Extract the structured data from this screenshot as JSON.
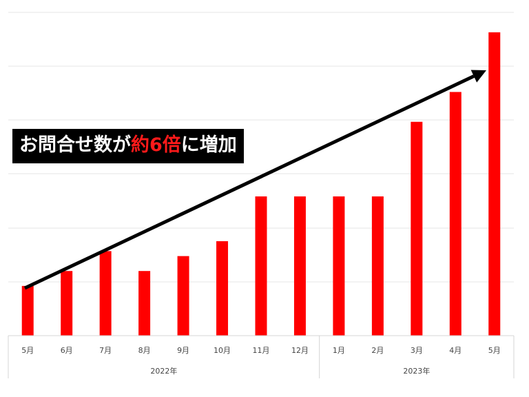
{
  "chart_data": {
    "type": "bar",
    "categories": [
      "5月",
      "6月",
      "7月",
      "8月",
      "9月",
      "10月",
      "11月",
      "12月",
      "1月",
      "2月",
      "3月",
      "4月",
      "5月"
    ],
    "year_groups": [
      {
        "label": "2022年",
        "months": [
          "5月",
          "6月",
          "7月",
          "8月",
          "9月",
          "10月",
          "11月",
          "12月"
        ]
      },
      {
        "label": "2023年",
        "months": [
          "1月",
          "2月",
          "3月",
          "4月",
          "5月"
        ]
      }
    ],
    "series": [
      {
        "values": [
          1.0,
          1.3,
          1.7,
          1.3,
          1.6,
          1.9,
          2.8,
          2.8,
          2.8,
          2.8,
          4.3,
          4.9,
          6.1
        ]
      }
    ],
    "ylim": [
      0,
      6.5
    ],
    "grid": true,
    "bar_color": "#ff0000",
    "trend_arrow": true,
    "annotation": {
      "prefix": "お問合せ数が",
      "highlight": "約6倍",
      "suffix": "に増加"
    }
  }
}
